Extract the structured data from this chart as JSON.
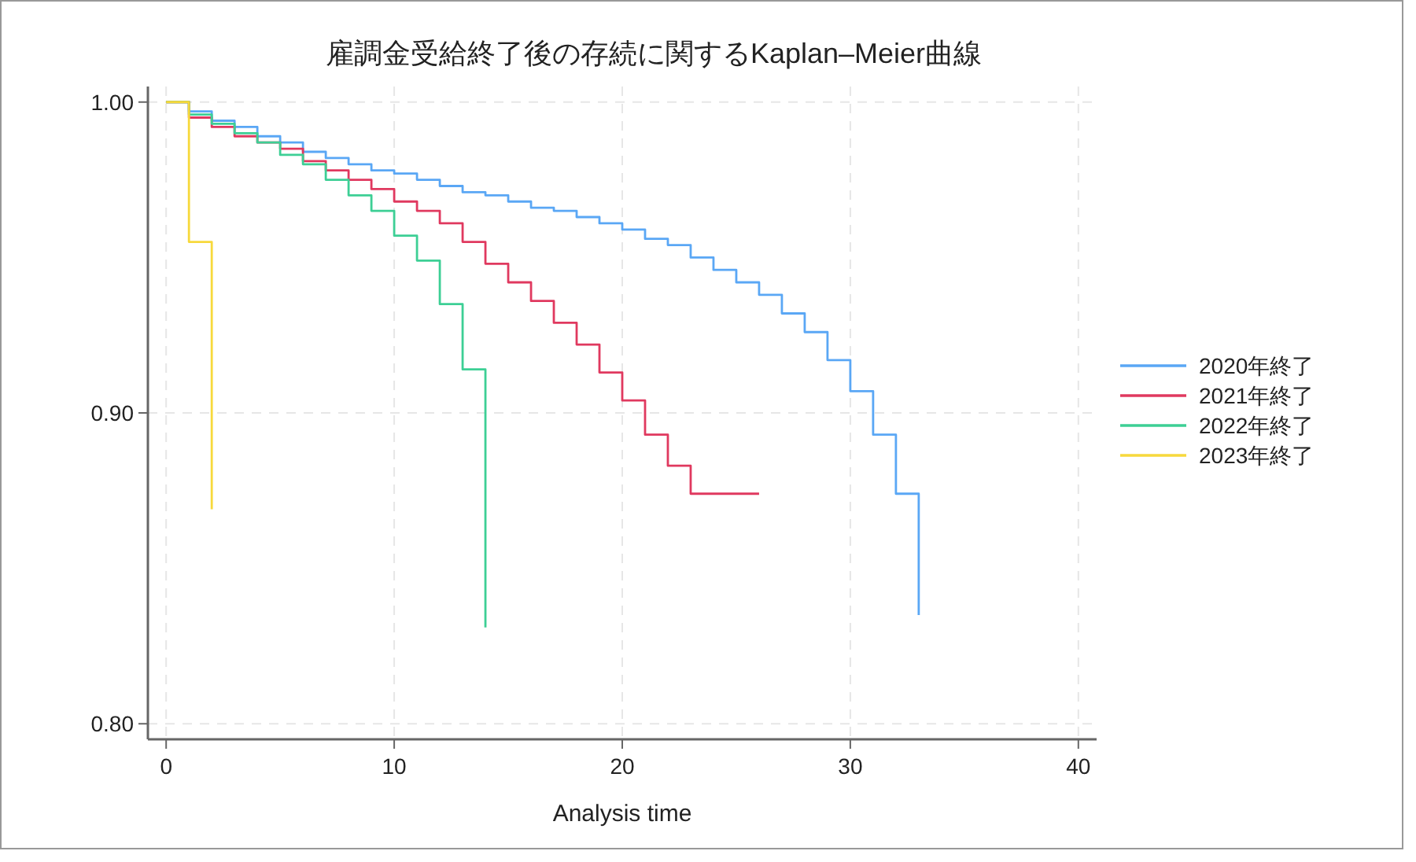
{
  "chart_data": {
    "type": "step",
    "title": "雇調金受給終了後の存続に関するKaplan–Meier曲線",
    "xlabel": "Analysis time",
    "xlim": [
      -0.8,
      40.8
    ],
    "xticks": [
      0,
      10,
      20,
      30,
      40
    ],
    "ylim": [
      0.795,
      1.005
    ],
    "yticks": [
      {
        "value": 0.8,
        "label": "0.80"
      },
      {
        "value": 0.9,
        "label": "0.90"
      },
      {
        "value": 1.0,
        "label": "1.00"
      }
    ],
    "grid": true,
    "legend": "right",
    "marker": "none",
    "line_style": "solid",
    "series": [
      {
        "name": "2020年終了",
        "color": "#5aa7f5",
        "x": [
          0,
          1,
          2,
          3,
          4,
          5,
          6,
          7,
          8,
          9,
          10,
          11,
          12,
          13,
          14,
          15,
          16,
          17,
          18,
          19,
          20,
          21,
          22,
          23,
          24,
          25,
          26,
          27,
          28,
          29,
          30,
          31,
          32,
          33
        ],
        "values": [
          1.0,
          0.997,
          0.994,
          0.992,
          0.989,
          0.987,
          0.984,
          0.982,
          0.98,
          0.978,
          0.977,
          0.975,
          0.973,
          0.971,
          0.97,
          0.968,
          0.966,
          0.965,
          0.963,
          0.961,
          0.959,
          0.956,
          0.954,
          0.95,
          0.946,
          0.942,
          0.938,
          0.932,
          0.926,
          0.917,
          0.907,
          0.893,
          0.874,
          0.835
        ]
      },
      {
        "name": "2021年終了",
        "color": "#e0395f",
        "x": [
          0,
          1,
          2,
          3,
          4,
          5,
          6,
          7,
          8,
          9,
          10,
          11,
          12,
          13,
          14,
          15,
          16,
          17,
          18,
          19,
          20,
          21,
          22,
          23,
          26
        ],
        "values": [
          1.0,
          0.995,
          0.992,
          0.989,
          0.987,
          0.985,
          0.981,
          0.978,
          0.975,
          0.972,
          0.968,
          0.965,
          0.961,
          0.955,
          0.948,
          0.942,
          0.936,
          0.929,
          0.922,
          0.913,
          0.904,
          0.893,
          0.883,
          0.874,
          0.874
        ]
      },
      {
        "name": "2022年終了",
        "color": "#3dcf95",
        "x": [
          0,
          1,
          2,
          3,
          4,
          5,
          6,
          7,
          8,
          9,
          10,
          11,
          12,
          13,
          14
        ],
        "values": [
          1.0,
          0.996,
          0.993,
          0.99,
          0.987,
          0.983,
          0.98,
          0.975,
          0.97,
          0.965,
          0.957,
          0.949,
          0.935,
          0.914,
          0.831
        ]
      },
      {
        "name": "2023年終了",
        "color": "#f7d93c",
        "x": [
          0,
          1,
          2
        ],
        "values": [
          1.0,
          0.955,
          0.869
        ]
      }
    ]
  }
}
